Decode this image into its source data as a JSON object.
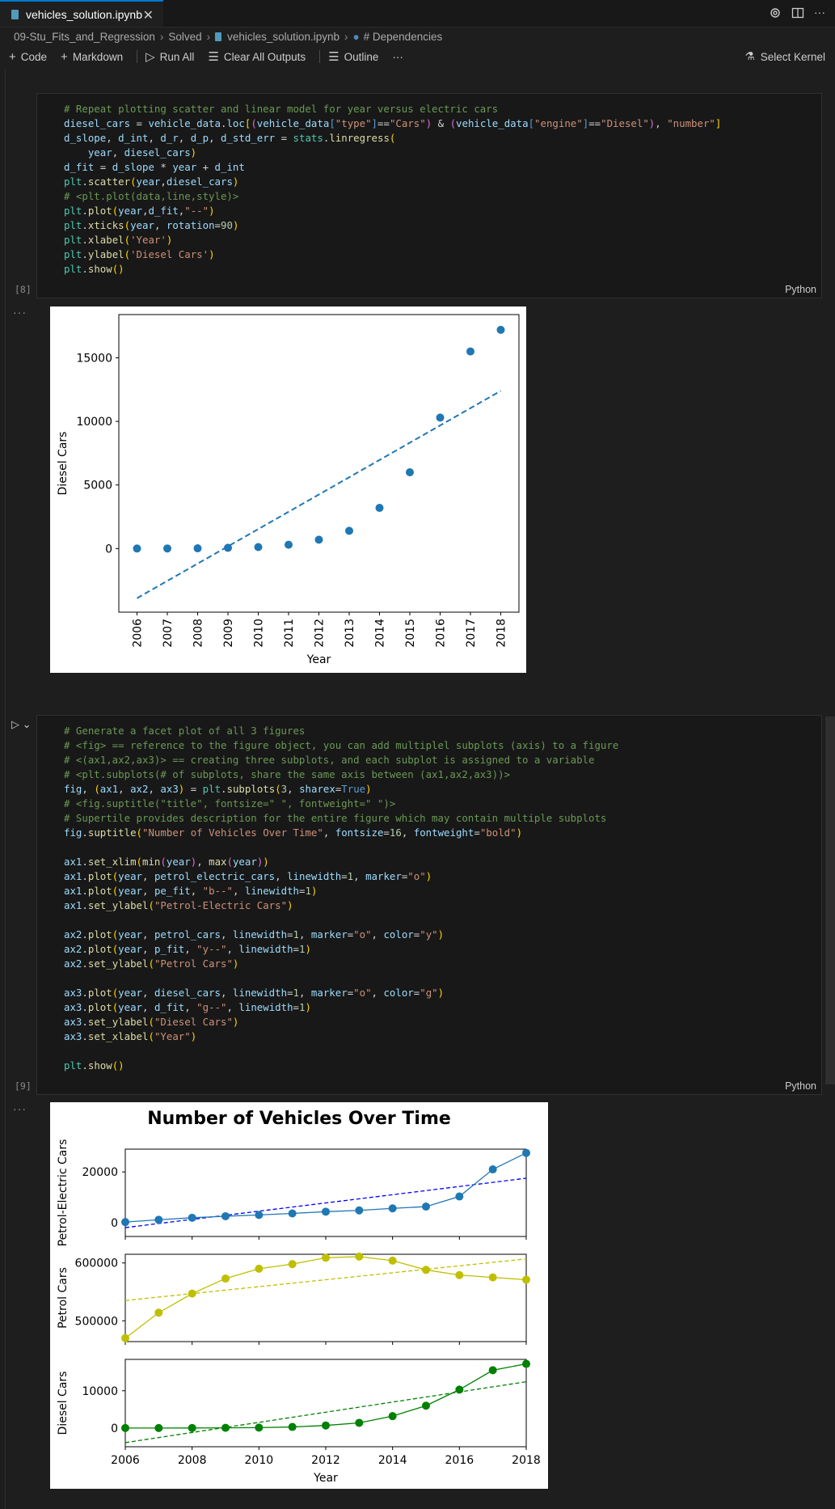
{
  "tab": {
    "title": "vehicles_solution.ipynb"
  },
  "breadcrumb": [
    "09-Stu_Fits_and_Regression",
    "Solved",
    "vehicles_solution.ipynb",
    "# Dependencies"
  ],
  "toolbar": {
    "code": "Code",
    "markdown": "Markdown",
    "run_all": "Run All",
    "clear_outputs": "Clear All Outputs",
    "outline": "Outline",
    "more": "···",
    "select_kernel": "Select Kernel"
  },
  "cell1": {
    "exec_count": "[8]",
    "language": "Python",
    "output_dots": "···"
  },
  "cell2": {
    "exec_count": "[9]",
    "language": "Python",
    "output_dots": "···"
  },
  "colors": {
    "accent": "#0078d4",
    "blue": "#1f77b4",
    "yellow": "#bfbf00",
    "green": "#008000"
  },
  "chart_data": [
    {
      "type": "scatter",
      "title": "",
      "xlabel": "Year",
      "ylabel": "Diesel Cars",
      "x": [
        2006,
        2007,
        2008,
        2009,
        2010,
        2011,
        2012,
        2013,
        2014,
        2015,
        2016,
        2017,
        2018
      ],
      "y": [
        5,
        10,
        20,
        60,
        120,
        300,
        700,
        1400,
        3200,
        6000,
        10300,
        15500,
        17200
      ],
      "fit": {
        "style": "dashed",
        "start": [
          2006,
          -3900
        ],
        "end": [
          2018,
          12400
        ]
      },
      "yticks": [
        0,
        5000,
        10000,
        15000
      ],
      "xlim": [
        2005.4,
        2018.6
      ],
      "ylim": [
        -5000,
        18400
      ]
    },
    {
      "type": "line",
      "title": "Number of Vehicles Over Time",
      "xlabel": "Year",
      "x": [
        2006,
        2007,
        2008,
        2009,
        2010,
        2011,
        2012,
        2013,
        2014,
        2015,
        2016,
        2017,
        2018
      ],
      "xticks": [
        2006,
        2008,
        2010,
        2012,
        2014,
        2016,
        2018
      ],
      "subplots": [
        {
          "ylabel": "Petrol-Electric Cars",
          "color": "#1f77b4",
          "fit_color": "#0000ff",
          "values": [
            200,
            1100,
            1900,
            2500,
            3000,
            3600,
            4300,
            4800,
            5600,
            6300,
            10300,
            21000,
            27500
          ],
          "fit": [
            -2000,
            17500
          ],
          "yticks": [
            0,
            20000
          ],
          "ylim": [
            -5500,
            29000
          ]
        },
        {
          "ylabel": "Petrol Cars",
          "color": "#bfbf00",
          "fit_color": "#bfbf00",
          "values": [
            470000,
            514000,
            547000,
            573000,
            590000,
            598000,
            609000,
            611000,
            604000,
            588000,
            579000,
            575000,
            571000
          ],
          "fit": [
            535000,
            607000
          ],
          "yticks": [
            500000,
            600000
          ],
          "ylim": [
            464000,
            615000
          ]
        },
        {
          "ylabel": "Diesel Cars",
          "color": "#008000",
          "fit_color": "#008000",
          "values": [
            5,
            10,
            20,
            60,
            120,
            300,
            700,
            1400,
            3200,
            6000,
            10300,
            15500,
            17200
          ],
          "fit": [
            -3900,
            12400
          ],
          "yticks": [
            0,
            10000
          ],
          "ylim": [
            -5000,
            18400
          ]
        }
      ]
    }
  ]
}
